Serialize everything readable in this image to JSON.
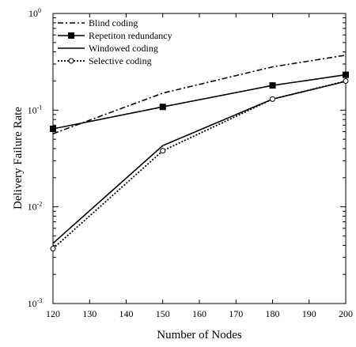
{
  "chart_data": {
    "type": "line",
    "title": "",
    "xlabel": "Number of Nodes",
    "ylabel": "Delivery Failure Rate",
    "x_scale": "linear",
    "y_scale": "log",
    "xlim": [
      120,
      200
    ],
    "ylim": [
      0.001,
      1
    ],
    "x_ticks": [
      120,
      130,
      140,
      150,
      160,
      170,
      180,
      190,
      200
    ],
    "y_ticks": [
      {
        "value": 0.001,
        "base": "10",
        "exp": "-3"
      },
      {
        "value": 0.01,
        "base": "10",
        "exp": "-2"
      },
      {
        "value": 0.1,
        "base": "10",
        "exp": "-1"
      },
      {
        "value": 1,
        "base": "10",
        "exp": "0"
      }
    ],
    "grid": false,
    "legend_position": "top-left",
    "series": [
      {
        "name": "Blind coding",
        "style": "dash-dot",
        "marker": "none",
        "color": "#000000",
        "x": [
          120,
          150,
          180,
          200
        ],
        "y": [
          0.057,
          0.15,
          0.28,
          0.37
        ]
      },
      {
        "name": "Repetiton redundancy",
        "style": "solid",
        "marker": "filled-square",
        "color": "#000000",
        "x": [
          120,
          150,
          180,
          200
        ],
        "y": [
          0.064,
          0.108,
          0.18,
          0.232
        ]
      },
      {
        "name": "Windowed coding",
        "style": "solid",
        "marker": "none",
        "color": "#000000",
        "x": [
          120,
          150,
          180,
          200
        ],
        "y": [
          0.0042,
          0.043,
          0.13,
          0.198
        ]
      },
      {
        "name": "Selective coding",
        "style": "dotted",
        "marker": "open-circle",
        "color": "#000000",
        "x": [
          120,
          150,
          180,
          200
        ],
        "y": [
          0.0037,
          0.038,
          0.13,
          0.2
        ]
      }
    ]
  }
}
